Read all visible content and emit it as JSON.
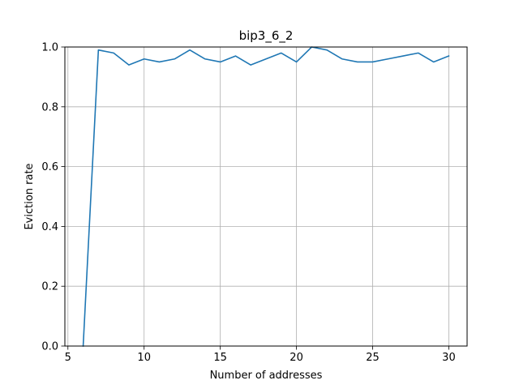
{
  "chart_data": {
    "type": "line",
    "title": "bip3_6_2",
    "xlabel": "Number of addresses",
    "ylabel": "Eviction rate",
    "xlim": [
      4.8,
      31.2
    ],
    "ylim": [
      0,
      1.0
    ],
    "xticks": [
      5,
      10,
      15,
      20,
      25,
      30
    ],
    "xtick_labels": [
      "5",
      "10",
      "15",
      "20",
      "25",
      "30"
    ],
    "yticks": [
      0,
      0.2,
      0.4,
      0.6,
      0.8,
      1.0
    ],
    "ytick_labels": [
      "0.0",
      "0.2",
      "0.4",
      "0.6",
      "0.8",
      "1.0"
    ],
    "grid": true,
    "series": [
      {
        "color": "#1f77b4",
        "x": [
          6,
          7,
          8,
          9,
          10,
          11,
          12,
          13,
          14,
          15,
          16,
          17,
          18,
          19,
          20,
          21,
          22,
          23,
          24,
          25,
          26,
          27,
          28,
          29,
          30
        ],
        "y": [
          0.0,
          0.99,
          0.98,
          0.94,
          0.96,
          0.95,
          0.96,
          0.99,
          0.96,
          0.95,
          0.97,
          0.94,
          0.96,
          0.98,
          0.95,
          1.0,
          0.99,
          0.96,
          0.95,
          0.95,
          0.96,
          0.97,
          0.98,
          0.95,
          0.97
        ]
      }
    ]
  }
}
